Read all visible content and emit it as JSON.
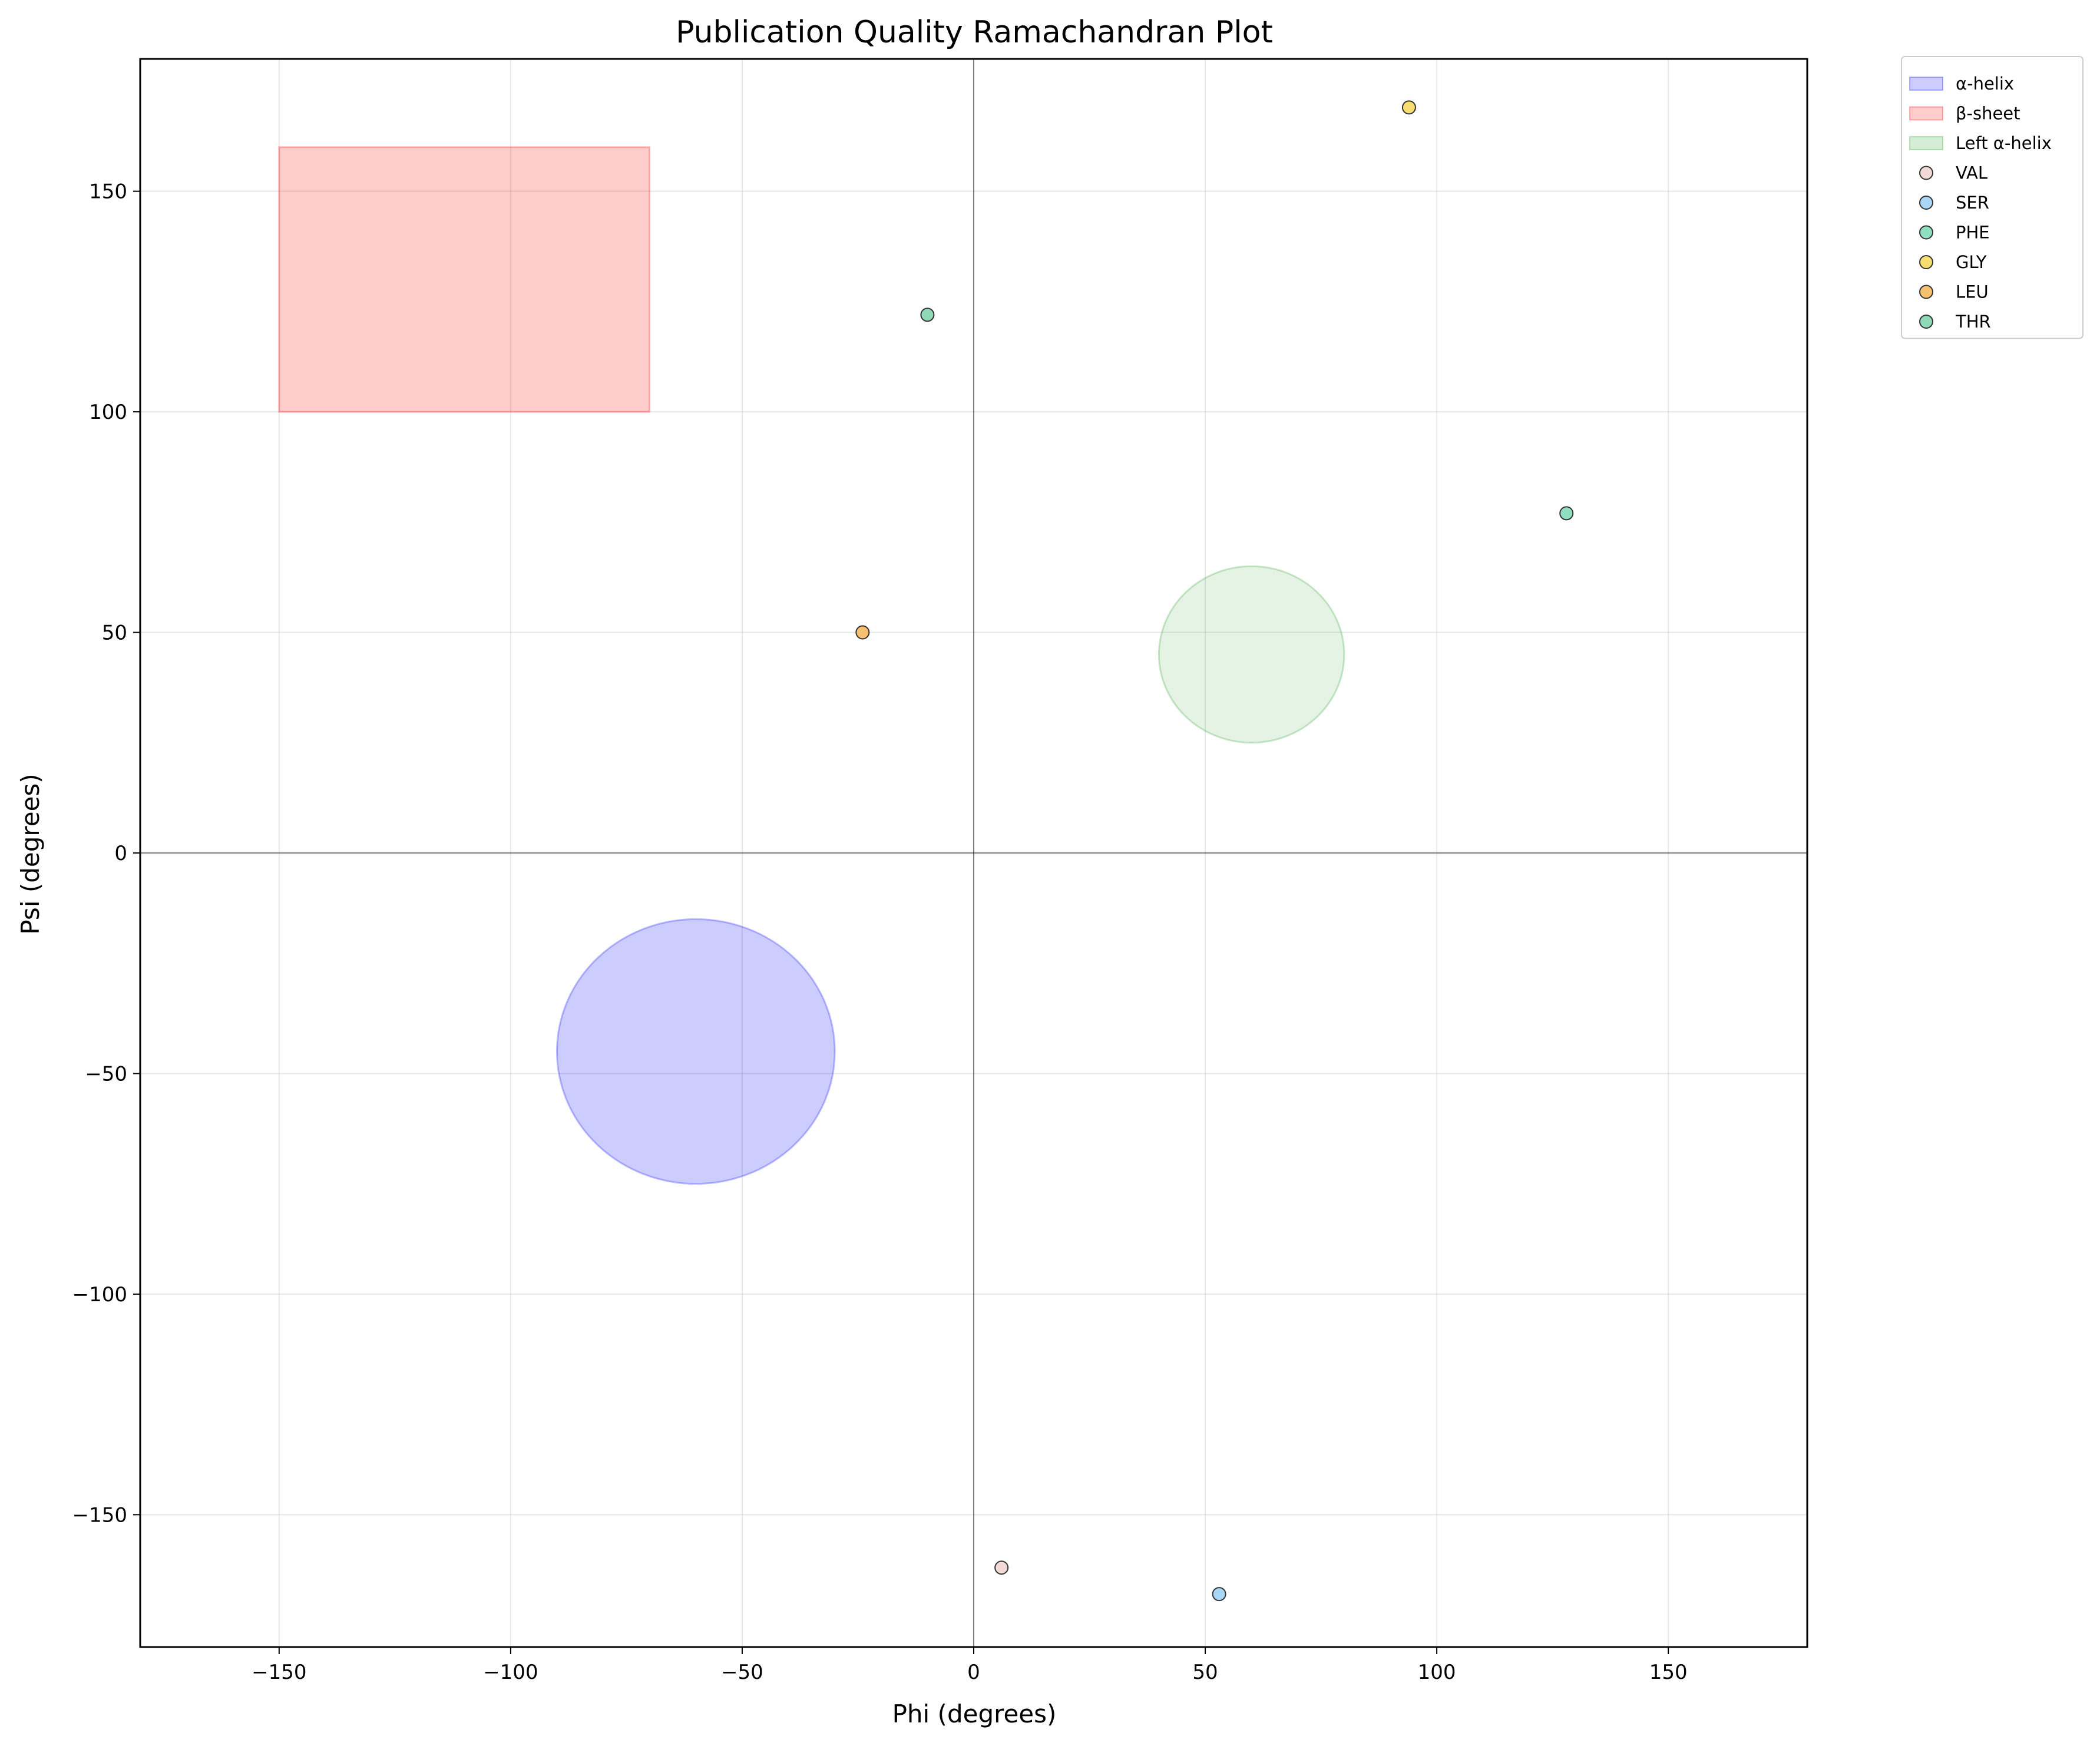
{
  "chart_data": {
    "type": "scatter",
    "title": "Publication Quality Ramachandran Plot",
    "xlabel": "Phi (degrees)",
    "ylabel": "Psi (degrees)",
    "xlim": [
      -180,
      180
    ],
    "ylim": [
      -180,
      180
    ],
    "xticks": [
      -150,
      -100,
      -50,
      0,
      50,
      100,
      150
    ],
    "yticks": [
      -150,
      -100,
      -50,
      0,
      50,
      100,
      150
    ],
    "grid": true,
    "zero_lines": true,
    "legend_placement": "outside top-right",
    "regions": [
      {
        "name": "α-helix",
        "shape": "ellipse",
        "center": [
          -60,
          -45
        ],
        "radius": [
          30,
          30
        ],
        "color": "#0000ff"
      },
      {
        "name": "β-sheet",
        "shape": "rect",
        "x": [
          -150,
          -70
        ],
        "y": [
          100,
          160
        ],
        "color": "#ff0000"
      },
      {
        "name": "Left α-helix",
        "shape": "ellipse",
        "center": [
          60,
          45
        ],
        "radius": [
          20,
          20
        ],
        "color": "#2ca02c"
      }
    ],
    "series": [
      {
        "name": "VAL",
        "color": "#f2d9d5",
        "points": [
          [
            6,
            -162
          ]
        ]
      },
      {
        "name": "SER",
        "color": "#a9d6f5",
        "points": [
          [
            53,
            -168
          ]
        ]
      },
      {
        "name": "PHE",
        "color": "#8fe0c0",
        "points": [
          [
            128,
            77
          ]
        ]
      },
      {
        "name": "GLY",
        "color": "#f7dc6f",
        "points": [
          [
            94,
            169
          ]
        ]
      },
      {
        "name": "LEU",
        "color": "#f5c06f",
        "points": [
          [
            -24,
            50
          ]
        ]
      },
      {
        "name": "THR",
        "color": "#8fd9b6",
        "points": [
          [
            -10,
            122
          ]
        ]
      }
    ]
  }
}
